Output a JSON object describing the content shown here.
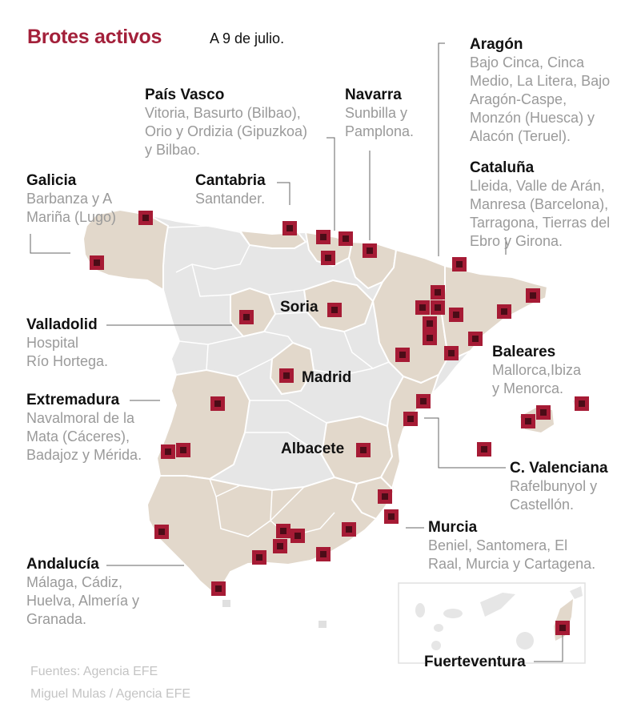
{
  "title": "Brotes activos",
  "date": "A 9 de julio.",
  "colors": {
    "title": "#a3203a",
    "region_affected": "#e2d8cb",
    "region_unaffected": "#e6e6e6",
    "border": "#ffffff",
    "marker_outer": "#a61b35",
    "marker_inner": "#4b0c17"
  },
  "regions": {
    "aragon": {
      "name": "Aragón",
      "places": "Bajo Cinca, Cinca\nMedio, La Litera, Bajo\nAragón-Caspe,\nMonzón (Huesca) y\nAlacón (Teruel)."
    },
    "cataluna": {
      "name": "Cataluña",
      "places": "Lleida, Valle de Arán,\nManresa (Barcelona),\nTarragona, Tierras del\nEbro y Girona."
    },
    "pais_vasco": {
      "name": "País Vasco",
      "places": "Vitoria, Basurto (Bilbao),\nOrio y Ordizia (Gipuzkoa)\ny Bilbao."
    },
    "navarra": {
      "name": "Navarra",
      "places": "Sunbilla y\nPamplona."
    },
    "galicia": {
      "name": "Galicia",
      "places": "Barbanza y A\nMariña (Lugo)"
    },
    "cantabria": {
      "name": "Cantabria",
      "places": "Santander."
    },
    "valladolid": {
      "name": "Valladolid",
      "places": "Hospital\nRío Hortega."
    },
    "baleares": {
      "name": "Baleares",
      "places": "Mallorca,Ibiza\ny Menorca."
    },
    "extremadura": {
      "name": "Extremadura",
      "places": "Navalmoral de la\nMata (Cáceres),\nBadajoz y Mérida."
    },
    "valenciana": {
      "name": "C. Valenciana",
      "places": "Rafelbunyol y\nCastellón."
    },
    "murcia": {
      "name": "Murcia",
      "places": "Beniel, Santomera, El\nRaal, Murcia y Cartagena."
    },
    "andalucia": {
      "name": "Andalucía",
      "places": "Málaga, Cádiz,\nHuelva, Almería y\nGranada."
    },
    "fuerteventura": {
      "name": "Fuerteventura"
    }
  },
  "cities": {
    "soria": "Soria",
    "madrid": "Madrid",
    "albacete": "Albacete"
  },
  "sources": {
    "line1": "Fuentes: Agencia EFE",
    "line2": "Miguel Mulas / Agencia EFE"
  }
}
